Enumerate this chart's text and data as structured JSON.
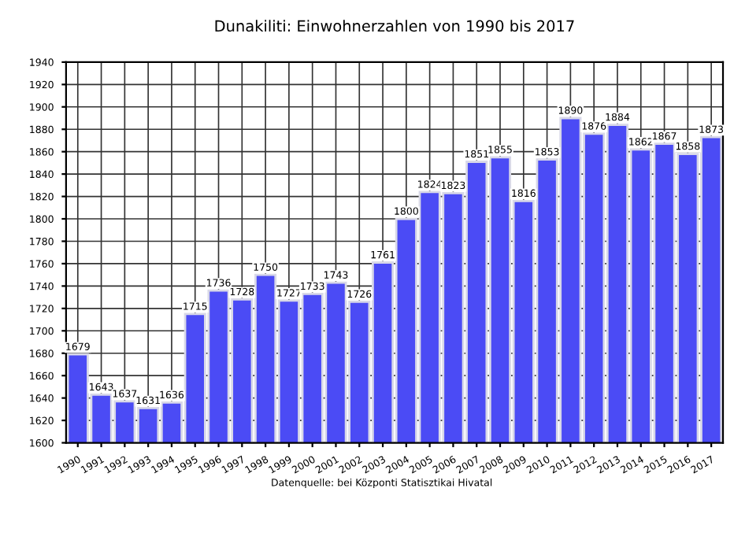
{
  "chart_data": {
    "type": "bar",
    "title": "Dunakiliti: Einwohnerzahlen von 1990 bis 2017",
    "categories": [
      "1990",
      "1991",
      "1992",
      "1993",
      "1994",
      "1995",
      "1996",
      "1997",
      "1998",
      "1999",
      "2000",
      "2001",
      "2002",
      "2003",
      "2004",
      "2005",
      "2006",
      "2007",
      "2008",
      "2009",
      "2010",
      "2011",
      "2012",
      "2013",
      "2014",
      "2015",
      "2016",
      "2017"
    ],
    "values": [
      1679,
      1643,
      1637,
      1631,
      1636,
      1715,
      1736,
      1728,
      1750,
      1727,
      1733,
      1743,
      1726,
      1761,
      1800,
      1824,
      1823,
      1851,
      1855,
      1816,
      1853,
      1890,
      1876,
      1884,
      1862,
      1867,
      1858,
      1873
    ],
    "color": "#4b4bf5",
    "ylim": [
      1600,
      1940
    ],
    "yticks": [
      1600,
      1620,
      1640,
      1660,
      1680,
      1700,
      1720,
      1740,
      1760,
      1780,
      1800,
      1820,
      1840,
      1860,
      1880,
      1900,
      1920,
      1940
    ],
    "grid": true,
    "data_labels": true,
    "annotations": [
      "Datenquelle: bei Központi Statisztikai Hivatal"
    ]
  }
}
